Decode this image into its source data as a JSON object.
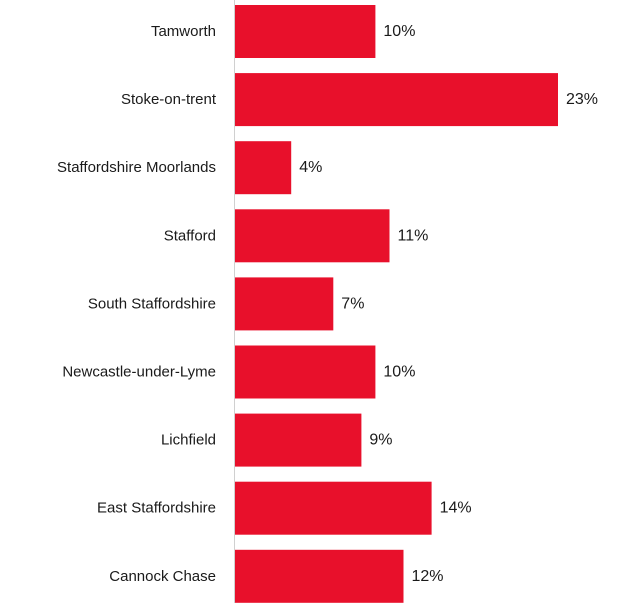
{
  "chart_data": {
    "type": "bar",
    "orientation": "horizontal",
    "categories": [
      "Tamworth",
      "Stoke-on-trent",
      "Staffordshire Moorlands",
      "Stafford",
      "South Staffordshire",
      "Newcastle-under-Lyme",
      "Lichfield",
      "East Staffordshire",
      "Cannock Chase"
    ],
    "values": [
      10,
      23,
      4,
      11,
      7,
      10,
      9,
      14,
      12
    ],
    "value_labels": [
      "10%",
      "23%",
      "4%",
      "11%",
      "7%",
      "10%",
      "9%",
      "14%",
      "12%"
    ],
    "unit": "%",
    "xlim": [
      0,
      23
    ],
    "grid": false,
    "legend": "none",
    "bar_color": "#e8102b",
    "axis_color": "#d0d0d0",
    "text_color": "#1a1a1a"
  }
}
